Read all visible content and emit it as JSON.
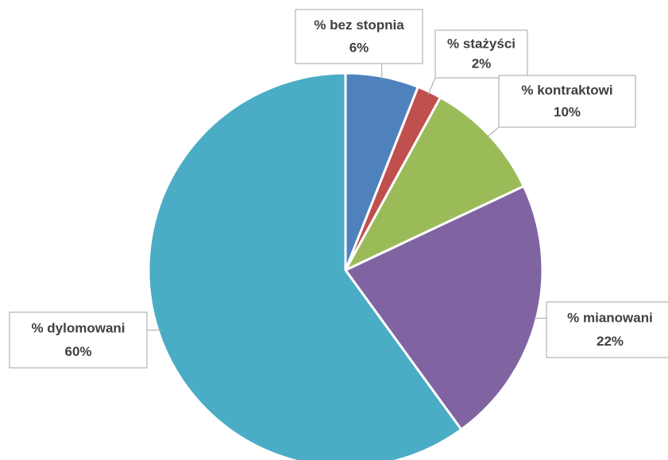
{
  "chart_data": {
    "type": "pie",
    "categories": [
      "% bez stopnia",
      "% stażyści",
      "% kontraktowi",
      "% mianowani",
      "% dylomowani"
    ],
    "values": [
      6,
      2,
      10,
      22,
      60
    ],
    "value_labels": [
      "6%",
      "2%",
      "10%",
      "22%",
      "60%"
    ],
    "colors": [
      "#4f81bd",
      "#c0504d",
      "#9bbb59",
      "#8064a2",
      "#4bacc6"
    ]
  }
}
